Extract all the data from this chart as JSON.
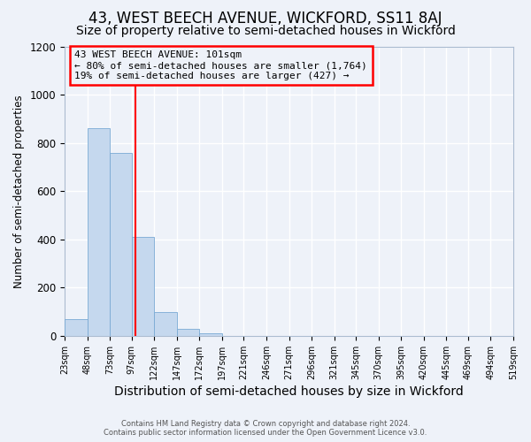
{
  "title": "43, WEST BEECH AVENUE, WICKFORD, SS11 8AJ",
  "subtitle": "Size of property relative to semi-detached houses in Wickford",
  "xlabel": "Distribution of semi-detached houses by size in Wickford",
  "ylabel": "Number of semi-detached properties",
  "footer_line1": "Contains HM Land Registry data © Crown copyright and database right 2024.",
  "footer_line2": "Contains public sector information licensed under the Open Government Licence v3.0.",
  "bin_edges": [
    23,
    48,
    73,
    97,
    122,
    147,
    172,
    197,
    221,
    246,
    271,
    296,
    321,
    345,
    370,
    395,
    420,
    445,
    469,
    494,
    519
  ],
  "bin_labels": [
    "23sqm",
    "48sqm",
    "73sqm",
    "97sqm",
    "122sqm",
    "147sqm",
    "172sqm",
    "197sqm",
    "221sqm",
    "246sqm",
    "271sqm",
    "296sqm",
    "321sqm",
    "345sqm",
    "370sqm",
    "395sqm",
    "420sqm",
    "445sqm",
    "469sqm",
    "494sqm",
    "519sqm"
  ],
  "counts": [
    70,
    860,
    760,
    410,
    100,
    30,
    10,
    0,
    0,
    0,
    0,
    0,
    0,
    0,
    0,
    0,
    0,
    0,
    0,
    0
  ],
  "bar_color": "#c5d8ee",
  "bar_edge_color": "#7aaad4",
  "vline_x": 101,
  "vline_color": "red",
  "annotation_title": "43 WEST BEECH AVENUE: 101sqm",
  "annotation_line1": "← 80% of semi-detached houses are smaller (1,764)",
  "annotation_line2": "19% of semi-detached houses are larger (427) →",
  "annotation_box_color": "red",
  "ylim": [
    0,
    1200
  ],
  "yticks": [
    0,
    200,
    400,
    600,
    800,
    1000,
    1200
  ],
  "background_color": "#eef2f9",
  "grid_color": "white",
  "title_fontsize": 12,
  "subtitle_fontsize": 10,
  "xlabel_fontsize": 10,
  "ylabel_fontsize": 8.5
}
